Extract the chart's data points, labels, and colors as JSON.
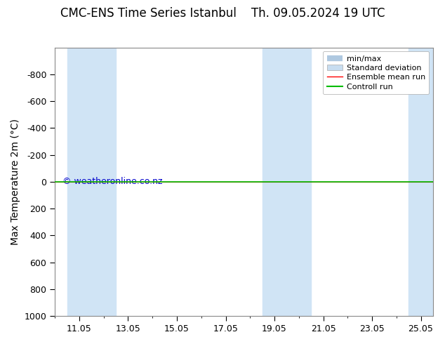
{
  "title_left": "CMC-ENS Time Series Istanbul",
  "title_right": "Th. 09.05.2024 19 UTC",
  "ylabel": "Max Temperature 2m (°C)",
  "xlim": [
    10.0,
    25.5
  ],
  "ylim_bottom": 1000,
  "ylim_top": -1000,
  "yticks": [
    -800,
    -600,
    -400,
    -200,
    0,
    200,
    400,
    600,
    800,
    1000
  ],
  "xtick_labels": [
    "11.05",
    "13.05",
    "15.05",
    "17.05",
    "19.05",
    "21.05",
    "23.05",
    "25.05"
  ],
  "xtick_positions": [
    11,
    13,
    15,
    17,
    19,
    21,
    23,
    25
  ],
  "shaded_bands": [
    [
      10.5,
      11.5
    ],
    [
      11.5,
      12.5
    ],
    [
      18.5,
      19.5
    ],
    [
      19.5,
      20.5
    ],
    [
      24.5,
      25.5
    ]
  ],
  "shade_color": "#d0e4f5",
  "background_color": "#ffffff",
  "control_run_y": 0,
  "ensemble_mean_y": 0,
  "control_run_color": "#00bb00",
  "ensemble_mean_color": "#ff0000",
  "watermark": "© weatheronline.co.nz",
  "watermark_color": "#0000cc",
  "legend_labels": [
    "min/max",
    "Standard deviation",
    "Ensemble mean run",
    "Controll run"
  ],
  "legend_minmax_color": "#aec8e0",
  "legend_std_color": "#c8ddf0",
  "title_fontsize": 12,
  "ylabel_fontsize": 10,
  "tick_fontsize": 9,
  "legend_fontsize": 8
}
